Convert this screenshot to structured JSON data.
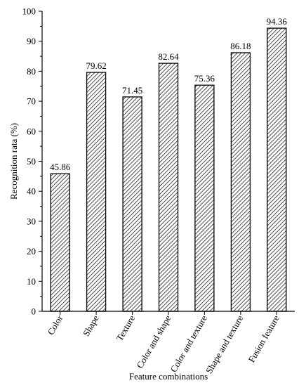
{
  "chart_data": {
    "type": "bar",
    "title": "",
    "xlabel": "Feature combinations",
    "ylabel": "Recognition rata (%)",
    "categories": [
      "Color",
      "Shape",
      "Texture",
      "Color and shape",
      "Color and texture",
      "Shape and texture",
      "Fusion feature"
    ],
    "values": [
      45.86,
      79.62,
      71.45,
      82.64,
      75.36,
      86.18,
      94.36
    ],
    "data_labels": [
      "45.86",
      "79.62",
      "71.45",
      "82.64",
      "75.36",
      "86.18",
      "94.36"
    ],
    "ylim": [
      0,
      100
    ],
    "yticks": [
      "0",
      "10",
      "20",
      "30",
      "40",
      "50",
      "60",
      "70",
      "80",
      "90",
      "100"
    ],
    "grid": false,
    "legend": "none",
    "bar_fill": "diagonal-hatch",
    "bar_color": "#000000",
    "background": "#ffffff"
  }
}
